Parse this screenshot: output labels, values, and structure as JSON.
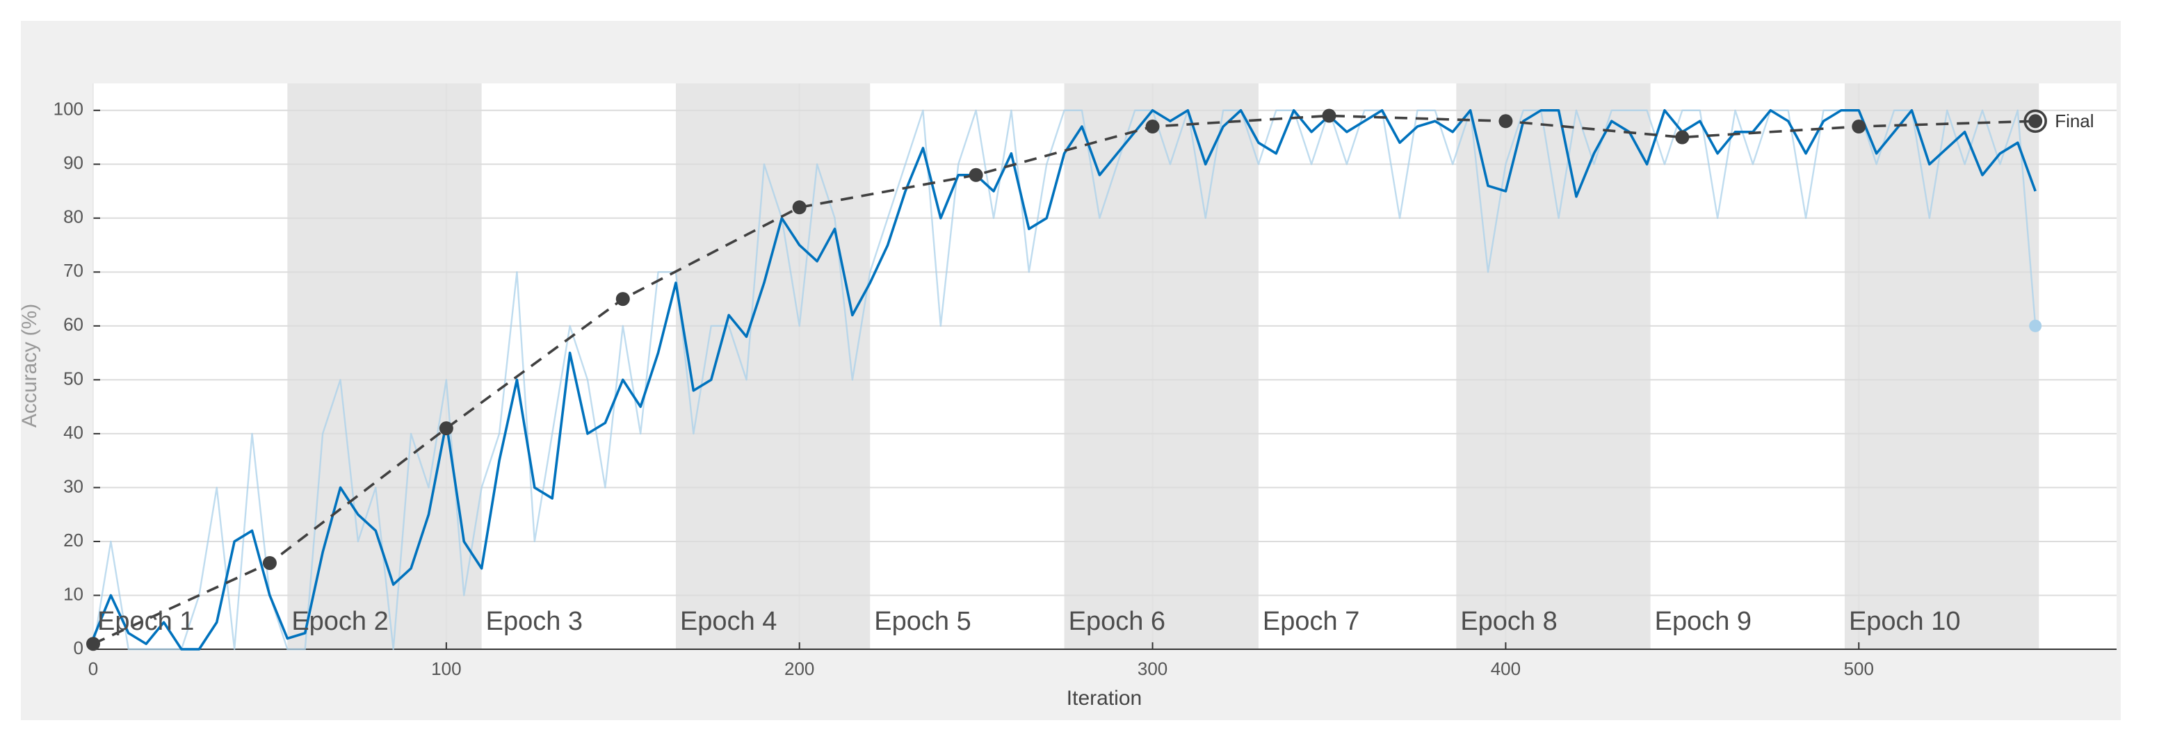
{
  "chart_data": {
    "type": "line",
    "xlabel": "Iteration",
    "ylabel": "Accuracy (%)",
    "xlim": [
      0,
      573
    ],
    "ylim": [
      0,
      105
    ],
    "xticks": [
      0,
      100,
      200,
      300,
      400,
      500
    ],
    "yticks": [
      0,
      10,
      20,
      30,
      40,
      50,
      60,
      70,
      80,
      90,
      100
    ],
    "grid": true,
    "epoch_edges": [
      0,
      55,
      110,
      165,
      220,
      275,
      330,
      386,
      441,
      496,
      551
    ],
    "epoch_labels": [
      "Epoch 1",
      "Epoch 2",
      "Epoch 3",
      "Epoch 4",
      "Epoch 5",
      "Epoch 6",
      "Epoch 7",
      "Epoch 8",
      "Epoch 9",
      "Epoch 10"
    ],
    "x": [
      0,
      5,
      10,
      15,
      20,
      25,
      30,
      35,
      40,
      45,
      50,
      55,
      60,
      65,
      70,
      75,
      80,
      85,
      90,
      95,
      100,
      105,
      110,
      115,
      120,
      125,
      130,
      135,
      140,
      145,
      150,
      155,
      160,
      165,
      170,
      175,
      180,
      185,
      190,
      195,
      200,
      205,
      210,
      215,
      220,
      225,
      230,
      235,
      240,
      245,
      250,
      255,
      260,
      265,
      270,
      275,
      280,
      285,
      290,
      295,
      300,
      305,
      310,
      315,
      320,
      325,
      330,
      335,
      340,
      345,
      350,
      355,
      360,
      365,
      370,
      375,
      380,
      385,
      390,
      395,
      400,
      405,
      410,
      415,
      420,
      425,
      430,
      435,
      440,
      445,
      450,
      455,
      460,
      465,
      470,
      475,
      480,
      485,
      490,
      495,
      500,
      505,
      510,
      515,
      520,
      525,
      530,
      535,
      540,
      545,
      550
    ],
    "series": [
      {
        "color": "#a9d0ea",
        "values": [
          0,
          20,
          0,
          0,
          0,
          0,
          10,
          30,
          0,
          40,
          10,
          0,
          0,
          40,
          50,
          20,
          30,
          0,
          40,
          30,
          50,
          10,
          30,
          40,
          70,
          20,
          40,
          60,
          50,
          30,
          60,
          40,
          70,
          70,
          40,
          60,
          60,
          50,
          90,
          80,
          60,
          90,
          80,
          50,
          70,
          80,
          90,
          100,
          60,
          90,
          100,
          80,
          100,
          70,
          90,
          100,
          100,
          80,
          90,
          100,
          100,
          90,
          100,
          80,
          100,
          100,
          90,
          100,
          100,
          90,
          100,
          90,
          100,
          100,
          80,
          100,
          100,
          90,
          100,
          70,
          90,
          100,
          100,
          80,
          100,
          90,
          100,
          100,
          100,
          90,
          100,
          100,
          80,
          100,
          90,
          100,
          100,
          80,
          100,
          100,
          100,
          90,
          100,
          100,
          80,
          100,
          90,
          100,
          90,
          100,
          60
        ]
      },
      {
        "color": "#0072bd",
        "values": [
          2,
          10,
          3,
          1,
          5,
          0,
          0,
          5,
          20,
          22,
          10,
          2,
          3,
          18,
          30,
          25,
          22,
          12,
          15,
          25,
          42,
          20,
          15,
          35,
          50,
          30,
          28,
          55,
          40,
          42,
          50,
          45,
          55,
          68,
          48,
          50,
          62,
          58,
          68,
          80,
          75,
          72,
          78,
          62,
          68,
          75,
          85,
          93,
          80,
          88,
          88,
          85,
          92,
          78,
          80,
          92,
          97,
          88,
          92,
          96,
          100,
          98,
          100,
          90,
          97,
          100,
          94,
          92,
          100,
          96,
          99,
          96,
          98,
          100,
          94,
          97,
          98,
          96,
          100,
          86,
          85,
          98,
          100,
          100,
          84,
          92,
          98,
          96,
          90,
          100,
          96,
          98,
          92,
          96,
          96,
          100,
          98,
          92,
          98,
          100,
          100,
          92,
          96,
          100,
          90,
          93,
          96,
          88,
          92,
          94,
          85
        ]
      }
    ],
    "validation": {
      "color": "#404040",
      "x": [
        0,
        50,
        100,
        150,
        200,
        250,
        300,
        350,
        400,
        450,
        500,
        550
      ],
      "values": [
        1,
        16,
        41,
        65,
        82,
        88,
        97,
        99,
        98,
        95,
        97,
        98
      ]
    },
    "final_label": "Final"
  }
}
